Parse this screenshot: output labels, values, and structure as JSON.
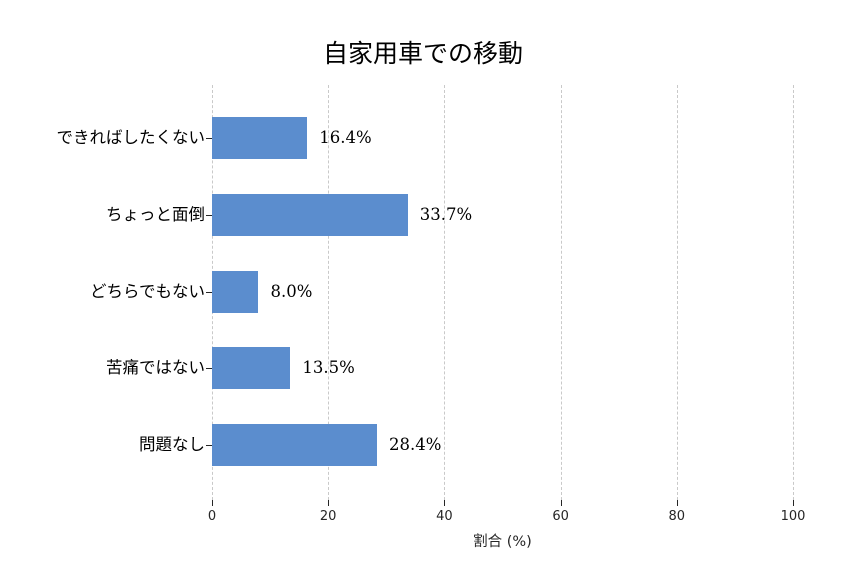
{
  "chart_data": {
    "type": "bar",
    "orientation": "horizontal",
    "title": "自家用車での移動",
    "categories": [
      "できればしたくない",
      "ちょっと面倒",
      "どちらでもない",
      "苦痛ではない",
      "問題なし"
    ],
    "values": [
      16.4,
      33.7,
      8.0,
      13.5,
      28.4
    ],
    "value_labels": [
      "16.4%",
      "33.7%",
      "8.0%",
      "13.5%",
      "28.4%"
    ],
    "xlabel": "割合 (%)",
    "ylabel": "",
    "xlim": [
      0,
      100
    ],
    "xticks": [
      0,
      20,
      40,
      60,
      80,
      100
    ],
    "xtick_labels": [
      "0",
      "20",
      "40",
      "60",
      "80",
      "100"
    ],
    "grid": "vertical-dashed",
    "legend": "none",
    "bar_color": "#5b8dce",
    "grid_color": "#c9c9c9",
    "tick_color": "#262626",
    "text_color": "#000000"
  }
}
